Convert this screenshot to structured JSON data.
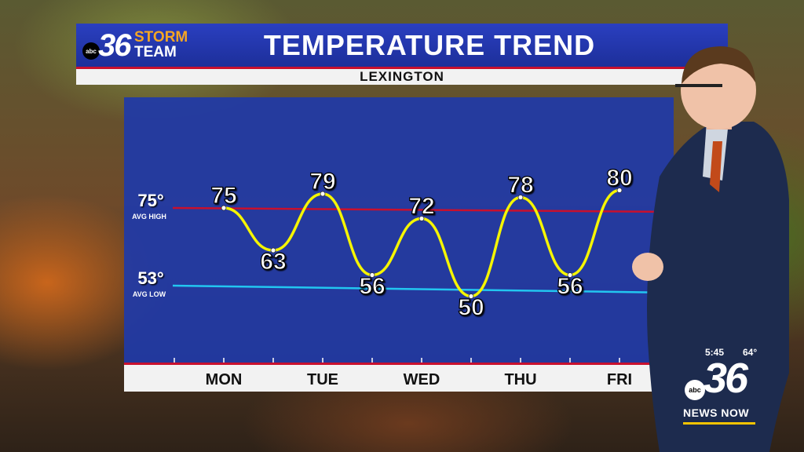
{
  "header": {
    "logo_abc": "abc",
    "logo_number": "36",
    "logo_storm": "STORM",
    "logo_team": "TEAM",
    "title": "TEMPERATURE TREND",
    "location": "LEXINGTON"
  },
  "chart_data": {
    "type": "line",
    "title": "TEMPERATURE TREND",
    "subtitle": "LEXINGTON",
    "categories": [
      "MON",
      "TUE",
      "WED",
      "THU",
      "FRI"
    ],
    "series": [
      {
        "color": "#f5f500",
        "points": [
          {
            "x": "MON",
            "period": "high",
            "value": 75
          },
          {
            "x": "MON",
            "period": "low",
            "value": 63
          },
          {
            "x": "TUE",
            "period": "high",
            "value": 79
          },
          {
            "x": "TUE",
            "period": "low",
            "value": 56
          },
          {
            "x": "WED",
            "period": "high",
            "value": 72
          },
          {
            "x": "WED",
            "period": "low",
            "value": 50
          },
          {
            "x": "THU",
            "period": "high",
            "value": 78
          },
          {
            "x": "THU",
            "period": "low",
            "value": 56
          },
          {
            "x": "FRI",
            "period": "high",
            "value": 80
          }
        ]
      }
    ],
    "reference_lines": [
      {
        "value": 75,
        "label": "75°",
        "sublabel": "AVG HIGH",
        "color": "#c8102e"
      },
      {
        "value": 53,
        "label": "53°",
        "sublabel": "AVG LOW",
        "color": "#22c6f0"
      }
    ],
    "ylim": [
      45,
      85
    ],
    "grid": false,
    "colors": {
      "panel": "#1f3aa8",
      "line": "#f5f500",
      "avg_high": "#c8102e",
      "avg_low": "#22c6f0"
    }
  },
  "station": {
    "time": "5:45",
    "temp": "64°",
    "abc": "abc",
    "number": "36",
    "news": "NEWS NOW"
  }
}
